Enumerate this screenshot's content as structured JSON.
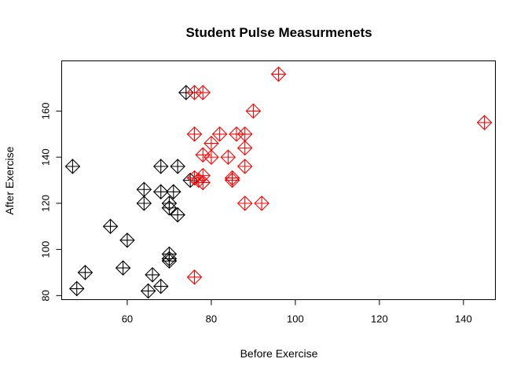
{
  "chart_data": {
    "type": "scatter",
    "title": "Student Pulse Measurmenets",
    "xlabel": "Before Exercise",
    "ylabel": "After Exercise",
    "xlim": [
      44.4,
      147.6
    ],
    "ylim": [
      78.24,
      181.76
    ],
    "xticks": [
      60,
      80,
      100,
      120,
      140
    ],
    "yticks": [
      80,
      100,
      120,
      140,
      160
    ],
    "marker": "diamond-plus",
    "grid": false,
    "legend": "none",
    "series": [
      {
        "color": "#000000",
        "points": [
          [
            47,
            136
          ],
          [
            48,
            83
          ],
          [
            50,
            90
          ],
          [
            56,
            110
          ],
          [
            59,
            92
          ],
          [
            60,
            104
          ],
          [
            64,
            126
          ],
          [
            64,
            120
          ],
          [
            65,
            82
          ],
          [
            66,
            89
          ],
          [
            68,
            136
          ],
          [
            68,
            125
          ],
          [
            68,
            84
          ],
          [
            70,
            120
          ],
          [
            70,
            118
          ],
          [
            70,
            98
          ],
          [
            70,
            96
          ],
          [
            70,
            95
          ],
          [
            71,
            125
          ],
          [
            72,
            136
          ],
          [
            72,
            115
          ],
          [
            74,
            168
          ],
          [
            75,
            130
          ]
        ]
      },
      {
        "color": "#ff0000",
        "points": [
          [
            76,
            168
          ],
          [
            76,
            150
          ],
          [
            76,
            131
          ],
          [
            76,
            88
          ],
          [
            77,
            130
          ],
          [
            78,
            168
          ],
          [
            78,
            141
          ],
          [
            78,
            132
          ],
          [
            78,
            129
          ],
          [
            80,
            146
          ],
          [
            80,
            140
          ],
          [
            82,
            150
          ],
          [
            84,
            140
          ],
          [
            85,
            131
          ],
          [
            85,
            130
          ],
          [
            86,
            150
          ],
          [
            88,
            150
          ],
          [
            88,
            144
          ],
          [
            88,
            136
          ],
          [
            88,
            120
          ],
          [
            90,
            160
          ],
          [
            92,
            120
          ],
          [
            96,
            176
          ],
          [
            145,
            155
          ]
        ]
      }
    ]
  }
}
